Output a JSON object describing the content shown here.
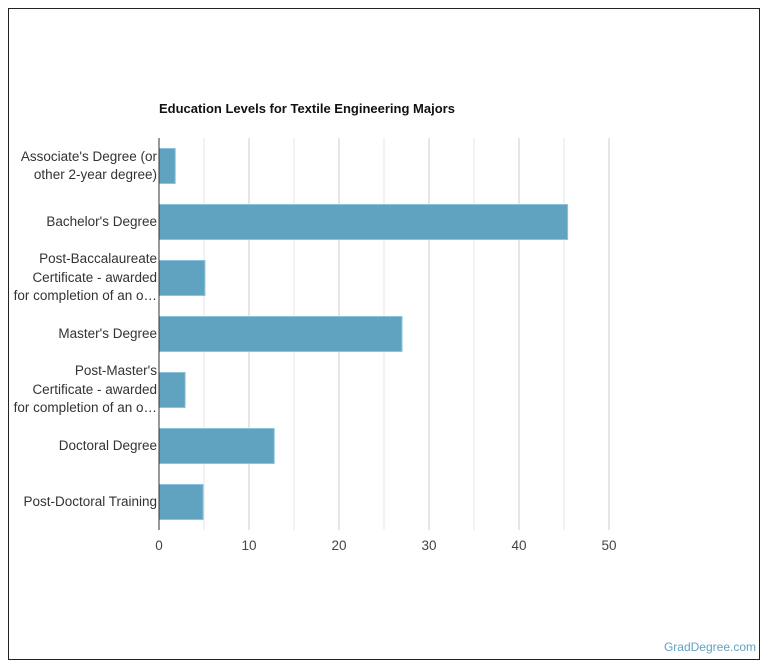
{
  "chart_data": {
    "type": "bar",
    "orientation": "horizontal",
    "title": "Education Levels for Textile Engineering Majors",
    "categories": [
      [
        "Associate's Degree (or",
        "other 2-year degree)"
      ],
      [
        "Bachelor's Degree"
      ],
      [
        "Post-Baccalaureate",
        "Certificate - awarded",
        "for completion of an o…"
      ],
      [
        "Master's Degree"
      ],
      [
        "Post-Master's",
        "Certificate - awarded",
        "for completion of an o…"
      ],
      [
        "Doctoral Degree"
      ],
      [
        "Post-Doctoral Training"
      ]
    ],
    "values": [
      1.8,
      45.4,
      5.1,
      27.0,
      2.9,
      12.8,
      4.9
    ],
    "xlim": [
      0,
      50
    ],
    "xticks": [
      0,
      10,
      20,
      30,
      40,
      50
    ],
    "grid": true,
    "bar_color": "#5fa3c0"
  },
  "watermark": "GradDegree.com"
}
